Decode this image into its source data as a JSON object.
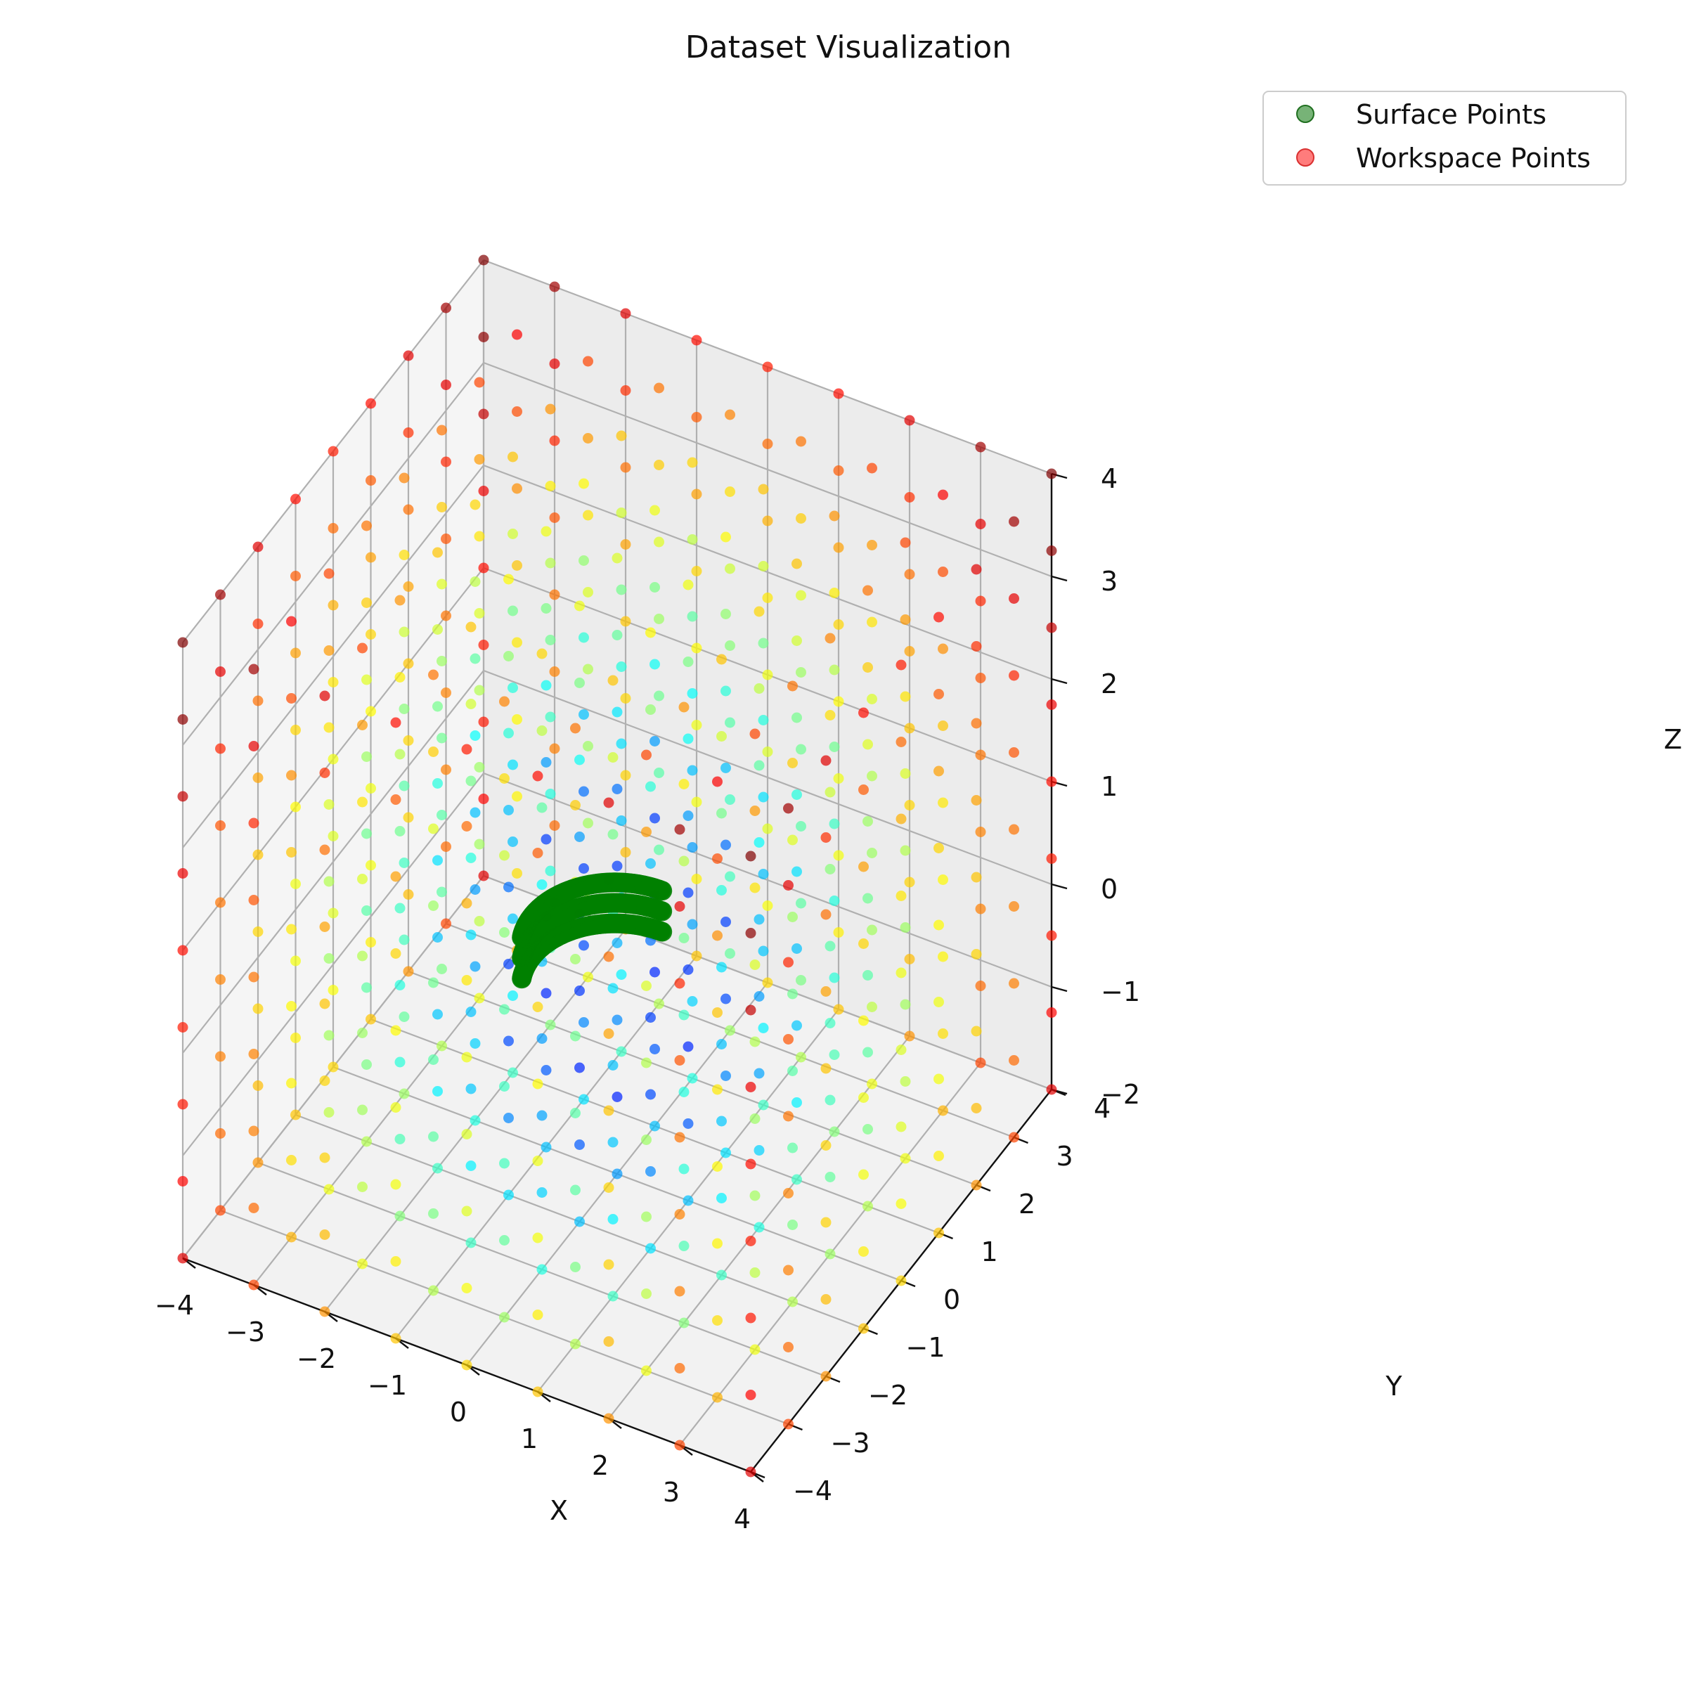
{
  "chart_data": {
    "type": "scatter",
    "projection": "3d",
    "title": "Dataset Visualization",
    "xlabel": "X",
    "ylabel": "Y",
    "zlabel": "Z",
    "xlim": [
      -4,
      4
    ],
    "ylim": [
      -4,
      4
    ],
    "zlim": [
      -2,
      4
    ],
    "x_ticks": [
      "−4",
      "−3",
      "−2",
      "−1",
      "0",
      "1",
      "2",
      "3",
      "4"
    ],
    "y_ticks": [
      "−4",
      "−3",
      "−2",
      "−1",
      "0",
      "1",
      "2",
      "3",
      "4"
    ],
    "z_ticks": [
      "−2",
      "−1",
      "0",
      "1",
      "2",
      "3",
      "4"
    ],
    "grid": true,
    "legend_position": "top-right",
    "legend": [
      {
        "label": "Surface Points",
        "color": "#2e8b2e"
      },
      {
        "label": "Workspace Points",
        "color": "#ff4a4a"
      }
    ],
    "series": [
      {
        "name": "Workspace Points",
        "description_of_coloring": "colored by distance from surface with jet colormap",
        "grid_x": [
          -4,
          -3,
          -2,
          -1,
          0,
          1,
          2,
          3,
          4
        ],
        "grid_y": [
          -4,
          -3,
          -2,
          -1,
          0,
          1,
          2,
          3,
          4
        ],
        "grid_z": [
          -2,
          -1.25,
          -0.5,
          0.25,
          1,
          1.75,
          2.5,
          3.25,
          4
        ],
        "colormap": "jet"
      },
      {
        "name": "Surface Points",
        "color": "#008000",
        "shape": "curved arc",
        "arc_center": [
          0,
          0,
          0
        ],
        "arc_radius": 1.2,
        "arc_start_deg": 90,
        "arc_end_deg": 200,
        "z_range": [
          -0.2,
          0.2
        ]
      }
    ]
  }
}
